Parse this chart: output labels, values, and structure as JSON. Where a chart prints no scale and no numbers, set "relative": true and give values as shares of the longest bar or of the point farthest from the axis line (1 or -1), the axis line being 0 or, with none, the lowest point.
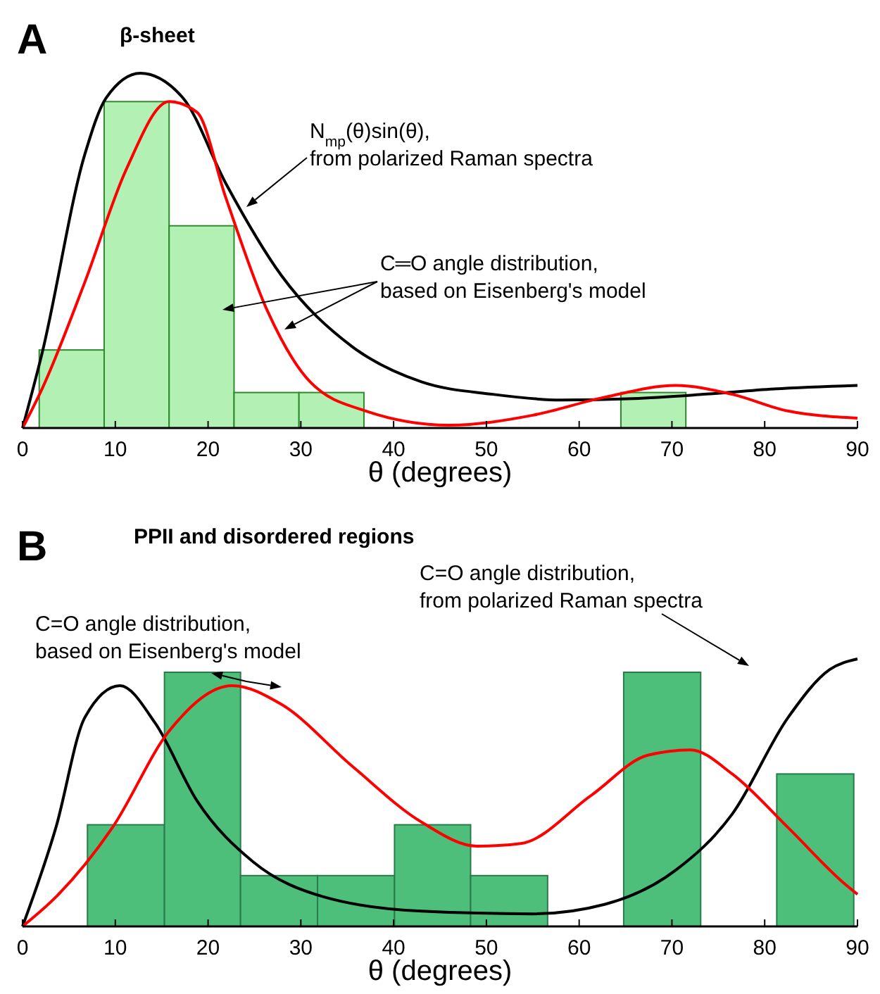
{
  "chart_data": [
    {
      "type": "histogram",
      "title": "β-sheet",
      "xlabel": "θ (degrees)",
      "relative": true,
      "xlim": [
        0,
        90
      ],
      "xticks": [
        0,
        10,
        20,
        30,
        40,
        50,
        60,
        70,
        80,
        90
      ],
      "bins": [
        1.8,
        8.8,
        15.8,
        22.8,
        29.8,
        36.8,
        64.5,
        71.5
      ],
      "values": [
        0.22,
        0.92,
        0.57,
        0.1,
        0.1,
        0,
        0.1
      ],
      "color": "#b3f0b3",
      "series": [
        {
          "type": "line",
          "color": "#000000",
          "x": [
            0,
            2.1,
            6.7,
            9,
            12.7,
            17.3,
            21.9,
            27.9,
            35.5,
            43,
            50.7,
            58,
            65.8,
            73.4,
            81,
            90
          ],
          "values": [
            0,
            0.21,
            0.77,
            0.93,
            1.0,
            0.93,
            0.69,
            0.43,
            0.23,
            0.13,
            0.095,
            0.079,
            0.083,
            0.095,
            0.11,
            0.12
          ]
        },
        {
          "type": "line",
          "color": "#ff0000",
          "x": [
            0,
            2.1,
            6.7,
            11.2,
            15.8,
            18.8,
            21.9,
            26.4,
            31,
            37,
            46,
            55,
            62.8,
            70.4,
            76.5,
            82.5,
            90
          ],
          "values": [
            0,
            0.11,
            0.41,
            0.73,
            0.92,
            0.89,
            0.65,
            0.33,
            0.13,
            0.048,
            0.008,
            0.036,
            0.087,
            0.12,
            0.095,
            0.048,
            0.028
          ]
        }
      ],
      "annotations": [
        "A",
        "N$_{mp}$(θ)sin(θ),\nfrom polarized Raman spectra",
        "C═O angle distribution,\nbased on Eisenberg's model"
      ]
    },
    {
      "type": "histogram",
      "title": "PPII and disordered regions",
      "xlabel": "θ (degrees)",
      "relative": true,
      "xlim": [
        0,
        90
      ],
      "xticks": [
        0,
        10,
        20,
        30,
        40,
        50,
        60,
        70,
        80,
        90
      ],
      "bins": [
        7.0,
        15.3,
        23.5,
        31.8,
        40.1,
        48.3,
        56.6,
        64.8,
        73.1,
        81.3,
        89.6
      ],
      "values": [
        0.38,
        0.95,
        0.19,
        0.19,
        0.38,
        0.19,
        0,
        0.95,
        0,
        0.57
      ],
      "color": "#4dbf7a",
      "series": [
        {
          "type": "line",
          "color": "#000000",
          "x": [
            0,
            3.6,
            6.7,
            10.5,
            14.3,
            18.8,
            24.9,
            32.5,
            43,
            55,
            62.8,
            70.4,
            76.5,
            82.5,
            87,
            90
          ],
          "values": [
            0,
            0.37,
            0.78,
            0.9,
            0.76,
            0.47,
            0.24,
            0.11,
            0.057,
            0.047,
            0.083,
            0.21,
            0.42,
            0.78,
            0.96,
            1.0
          ]
        },
        {
          "type": "line",
          "color": "#ff0000",
          "x": [
            0,
            3.6,
            9.7,
            15.8,
            22.6,
            27.9,
            35.5,
            43,
            49,
            53.7,
            61.3,
            67.4,
            72,
            76.5,
            82.5,
            88.6,
            90
          ],
          "values": [
            0,
            0.11,
            0.37,
            0.73,
            0.9,
            0.83,
            0.6,
            0.39,
            0.3,
            0.31,
            0.49,
            0.64,
            0.66,
            0.57,
            0.37,
            0.16,
            0.12
          ]
        }
      ],
      "annotations": [
        "B",
        "C=O angle distribution,\nfrom polarized Raman spectra",
        "C=O angle distribution,\nbased on Eisenberg's model"
      ]
    }
  ]
}
